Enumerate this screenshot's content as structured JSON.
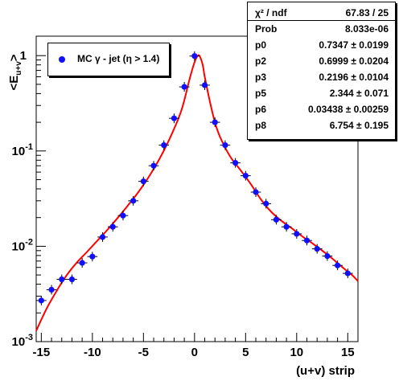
{
  "chart_data": {
    "type": "scatter",
    "xlabel": "(u+v) strip",
    "ylabel": "<E_u+v>",
    "xlim": [
      -15.5,
      16
    ],
    "ylim": [
      0.001,
      1.6
    ],
    "yscale": "log",
    "grid": false,
    "legend_position": "top-left",
    "x_ticks": [
      -15,
      -10,
      -5,
      0,
      5,
      10,
      15
    ],
    "x_tick_labels": [
      "-15",
      "-10",
      "-5",
      "0",
      "5",
      "10",
      "15"
    ],
    "y_ticks": [
      0.001,
      0.01,
      0.1,
      1
    ],
    "y_tick_labels": [
      "10^-3",
      "10^-2",
      "10^-1",
      "1"
    ],
    "series": [
      {
        "name": "MC γ - jet (η > 1.4)",
        "kind": "points",
        "color": "#1010ff",
        "x": [
          -15,
          -14,
          -13,
          -12,
          -11,
          -10,
          -9,
          -8,
          -7,
          -6,
          -5,
          -4,
          -3,
          -2,
          -1,
          0,
          1,
          2,
          3,
          4,
          5,
          6,
          7,
          8,
          9,
          10,
          11,
          12,
          13,
          14,
          15
        ],
        "y": [
          0.0027,
          0.0035,
          0.0045,
          0.0045,
          0.0067,
          0.0078,
          0.0125,
          0.016,
          0.021,
          0.03,
          0.048,
          0.07,
          0.115,
          0.22,
          0.47,
          0.99,
          0.49,
          0.2,
          0.115,
          0.075,
          0.055,
          0.037,
          0.028,
          0.019,
          0.016,
          0.0135,
          0.0115,
          0.0094,
          0.0079,
          0.0063,
          0.0052
        ]
      },
      {
        "name": "fit",
        "kind": "line",
        "color": "#ff0000",
        "x": [
          -15.5,
          -14.5,
          -13.5,
          -12.5,
          -11.5,
          -10.5,
          -9.5,
          -8.5,
          -7.5,
          -6.5,
          -5.5,
          -4.5,
          -3.5,
          -2.5,
          -1.5,
          -1.0,
          -0.5,
          0.0,
          0.3,
          0.5,
          0.8,
          1.0,
          1.5,
          2.0,
          2.5,
          3.5,
          4.5,
          5.5,
          6.5,
          7.5,
          8.5,
          9.5,
          10.5,
          11.5,
          12.5,
          13.5,
          14.5,
          15.5,
          16.0
        ],
        "y": [
          0.0013,
          0.0022,
          0.0034,
          0.005,
          0.0068,
          0.0088,
          0.0115,
          0.015,
          0.02,
          0.027,
          0.037,
          0.053,
          0.08,
          0.13,
          0.23,
          0.34,
          0.56,
          0.85,
          0.99,
          0.99,
          0.8,
          0.6,
          0.33,
          0.2,
          0.14,
          0.087,
          0.063,
          0.045,
          0.031,
          0.023,
          0.0185,
          0.0155,
          0.0128,
          0.0108,
          0.009,
          0.0074,
          0.006,
          0.0049,
          0.0043
        ]
      }
    ]
  },
  "stats": [
    {
      "key": "χ² / ndf",
      "value": "67.83 / 25"
    },
    {
      "key": "Prob",
      "value": "8.033e-06"
    },
    {
      "key": "p0",
      "value": "0.7347 ± 0.0199"
    },
    {
      "key": "p2",
      "value": "0.6999 ± 0.0204"
    },
    {
      "key": "p3",
      "value": "0.2196 ± 0.0104"
    },
    {
      "key": "p5",
      "value": "2.344 ± 0.071"
    },
    {
      "key": "p6",
      "value": "0.03438 ± 0.00259"
    },
    {
      "key": "p8",
      "value": "6.754 ± 0.195"
    }
  ]
}
